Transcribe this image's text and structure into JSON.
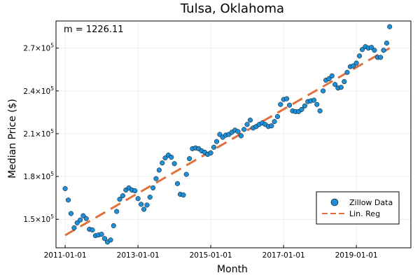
{
  "chart_data": {
    "type": "scatter",
    "title": "Tulsa, Oklahoma",
    "xlabel": "Month",
    "ylabel": "Median Price ($)",
    "annotation": "m = 1226.11",
    "xlim": [
      "2010-10-01",
      "2020-07-01"
    ],
    "ylim": [
      130000,
      289000
    ],
    "x_ticks": [
      {
        "date": "2011-01-01",
        "label": "2011-01-01"
      },
      {
        "date": "2013-01-01",
        "label": "2013-01-01"
      },
      {
        "date": "2015-01-01",
        "label": "2015-01-01"
      },
      {
        "date": "2017-01-01",
        "label": "2017-01-01"
      },
      {
        "date": "2019-01-01",
        "label": "2019-01-01"
      }
    ],
    "y_ticks": [
      {
        "value": 150000,
        "mantissa": "1.5",
        "base": "×10",
        "exp": "5"
      },
      {
        "value": 180000,
        "mantissa": "1.8",
        "base": "×10",
        "exp": "5"
      },
      {
        "value": 210000,
        "mantissa": "2.1",
        "base": "×10",
        "exp": "5"
      },
      {
        "value": 240000,
        "mantissa": "2.4",
        "base": "×10",
        "exp": "5"
      },
      {
        "value": 270000,
        "mantissa": "2.7",
        "base": "×10",
        "exp": "5"
      }
    ],
    "grid": true,
    "legend_position": "bottom-right",
    "series": [
      {
        "name": "Zillow Data",
        "type": "scatter",
        "color": "#1f8fd8",
        "start": "2011-01-01",
        "frequency": "monthly",
        "values": [
          171500,
          163500,
          154000,
          144000,
          147500,
          149500,
          152500,
          150500,
          143000,
          142500,
          138500,
          139000,
          139500,
          136500,
          134000,
          135500,
          145500,
          155500,
          164000,
          166500,
          170500,
          172000,
          170500,
          170000,
          164500,
          160500,
          157000,
          160000,
          165500,
          172000,
          178500,
          184500,
          189500,
          193000,
          195000,
          193500,
          189000,
          175000,
          167500,
          167000,
          181500,
          192500,
          199500,
          200000,
          199500,
          198000,
          197000,
          195500,
          196500,
          200500,
          204500,
          209500,
          207500,
          209000,
          209500,
          211000,
          212500,
          211500,
          208500,
          213000,
          216500,
          219500,
          214000,
          215000,
          216500,
          217500,
          216500,
          215000,
          215500,
          218500,
          222000,
          230500,
          234000,
          234500,
          230000,
          226000,
          225500,
          225500,
          227000,
          229500,
          232500,
          233000,
          233500,
          230500,
          226000,
          240000,
          247500,
          248500,
          250500,
          244500,
          242000,
          242500,
          246500,
          253000,
          257000,
          257500,
          259500,
          264500,
          269000,
          271000,
          270000,
          270500,
          268500,
          263500,
          263500,
          268500,
          273500,
          285000
        ]
      },
      {
        "name": "Lin. Reg",
        "type": "line",
        "color": "#e0703c",
        "dash": true,
        "start_value": 138800,
        "end_value": 270000
      }
    ]
  }
}
